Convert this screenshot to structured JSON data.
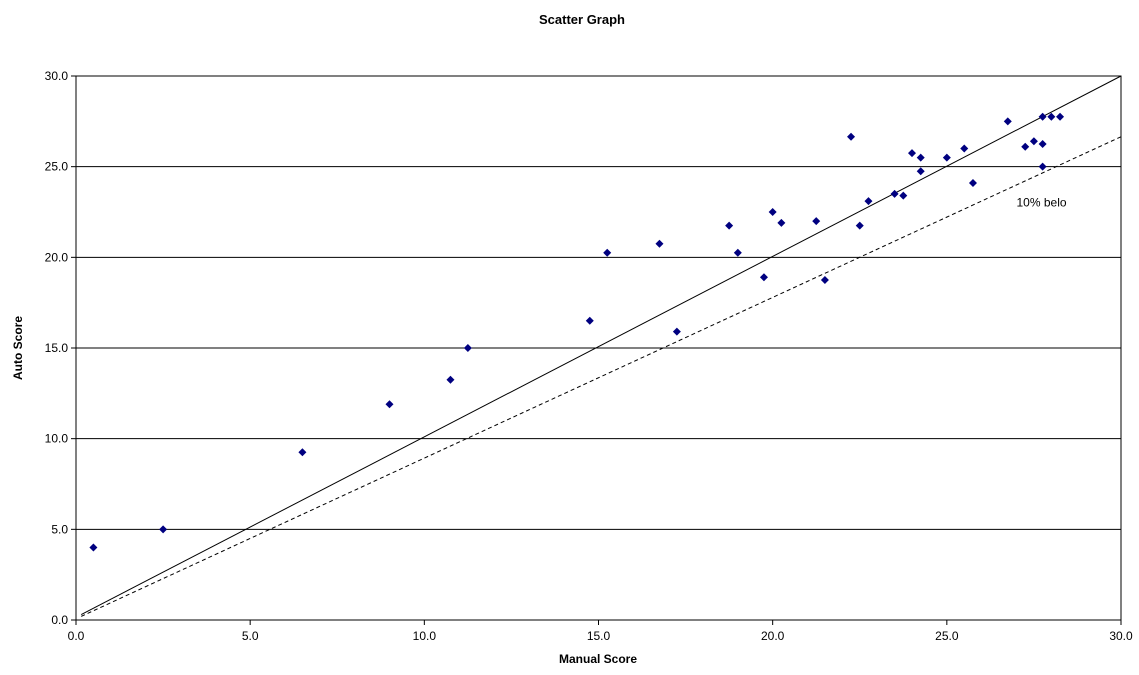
{
  "chart_data": {
    "type": "scatter",
    "title": "Scatter Graph",
    "xlabel": "Manual Score",
    "ylabel": "Auto Score",
    "xlim": [
      0,
      30
    ],
    "ylim": [
      0,
      30
    ],
    "xticks": [
      "0.0",
      "5.0",
      "10.0",
      "15.0",
      "20.0",
      "25.0",
      "30.0"
    ],
    "yticks": [
      "0.0",
      "5.0",
      "10.0",
      "15.0",
      "20.0",
      "25.0",
      "30.0"
    ],
    "grid": "horizontal",
    "legend": "none",
    "marker_color": "#000080",
    "points": [
      {
        "x": 0.5,
        "y": 4.0
      },
      {
        "x": 2.5,
        "y": 5.0
      },
      {
        "x": 6.5,
        "y": 9.25
      },
      {
        "x": 9.0,
        "y": 11.9
      },
      {
        "x": 10.75,
        "y": 13.25
      },
      {
        "x": 11.25,
        "y": 15.0
      },
      {
        "x": 14.75,
        "y": 16.5
      },
      {
        "x": 15.25,
        "y": 20.25
      },
      {
        "x": 16.75,
        "y": 20.75
      },
      {
        "x": 17.25,
        "y": 15.9
      },
      {
        "x": 18.75,
        "y": 21.75
      },
      {
        "x": 19.0,
        "y": 20.25
      },
      {
        "x": 19.75,
        "y": 18.9
      },
      {
        "x": 20.0,
        "y": 22.5
      },
      {
        "x": 20.25,
        "y": 21.9
      },
      {
        "x": 21.25,
        "y": 22.0
      },
      {
        "x": 21.5,
        "y": 18.75
      },
      {
        "x": 22.25,
        "y": 26.65
      },
      {
        "x": 22.5,
        "y": 21.75
      },
      {
        "x": 22.75,
        "y": 23.1
      },
      {
        "x": 23.5,
        "y": 23.5
      },
      {
        "x": 23.75,
        "y": 23.4
      },
      {
        "x": 24.0,
        "y": 25.75
      },
      {
        "x": 24.25,
        "y": 25.5
      },
      {
        "x": 24.25,
        "y": 24.75
      },
      {
        "x": 25.0,
        "y": 25.5
      },
      {
        "x": 25.5,
        "y": 26.0
      },
      {
        "x": 25.75,
        "y": 24.1
      },
      {
        "x": 26.75,
        "y": 27.5
      },
      {
        "x": 27.25,
        "y": 26.1
      },
      {
        "x": 27.5,
        "y": 26.4
      },
      {
        "x": 27.75,
        "y": 27.75
      },
      {
        "x": 27.75,
        "y": 26.25
      },
      {
        "x": 27.75,
        "y": 25.0
      },
      {
        "x": 28.0,
        "y": 27.75
      },
      {
        "x": 28.25,
        "y": 27.75
      }
    ],
    "lines": [
      {
        "style": "solid",
        "color": "#000000",
        "from": [
          0.15,
          0.3
        ],
        "to": [
          30,
          30
        ]
      },
      {
        "style": "dashed",
        "color": "#000000",
        "from": [
          0.15,
          0.2
        ],
        "to": [
          30,
          26.65
        ]
      }
    ],
    "annotations": [
      {
        "text": "10% belo",
        "x": 27.0,
        "y": 22.8
      }
    ]
  }
}
